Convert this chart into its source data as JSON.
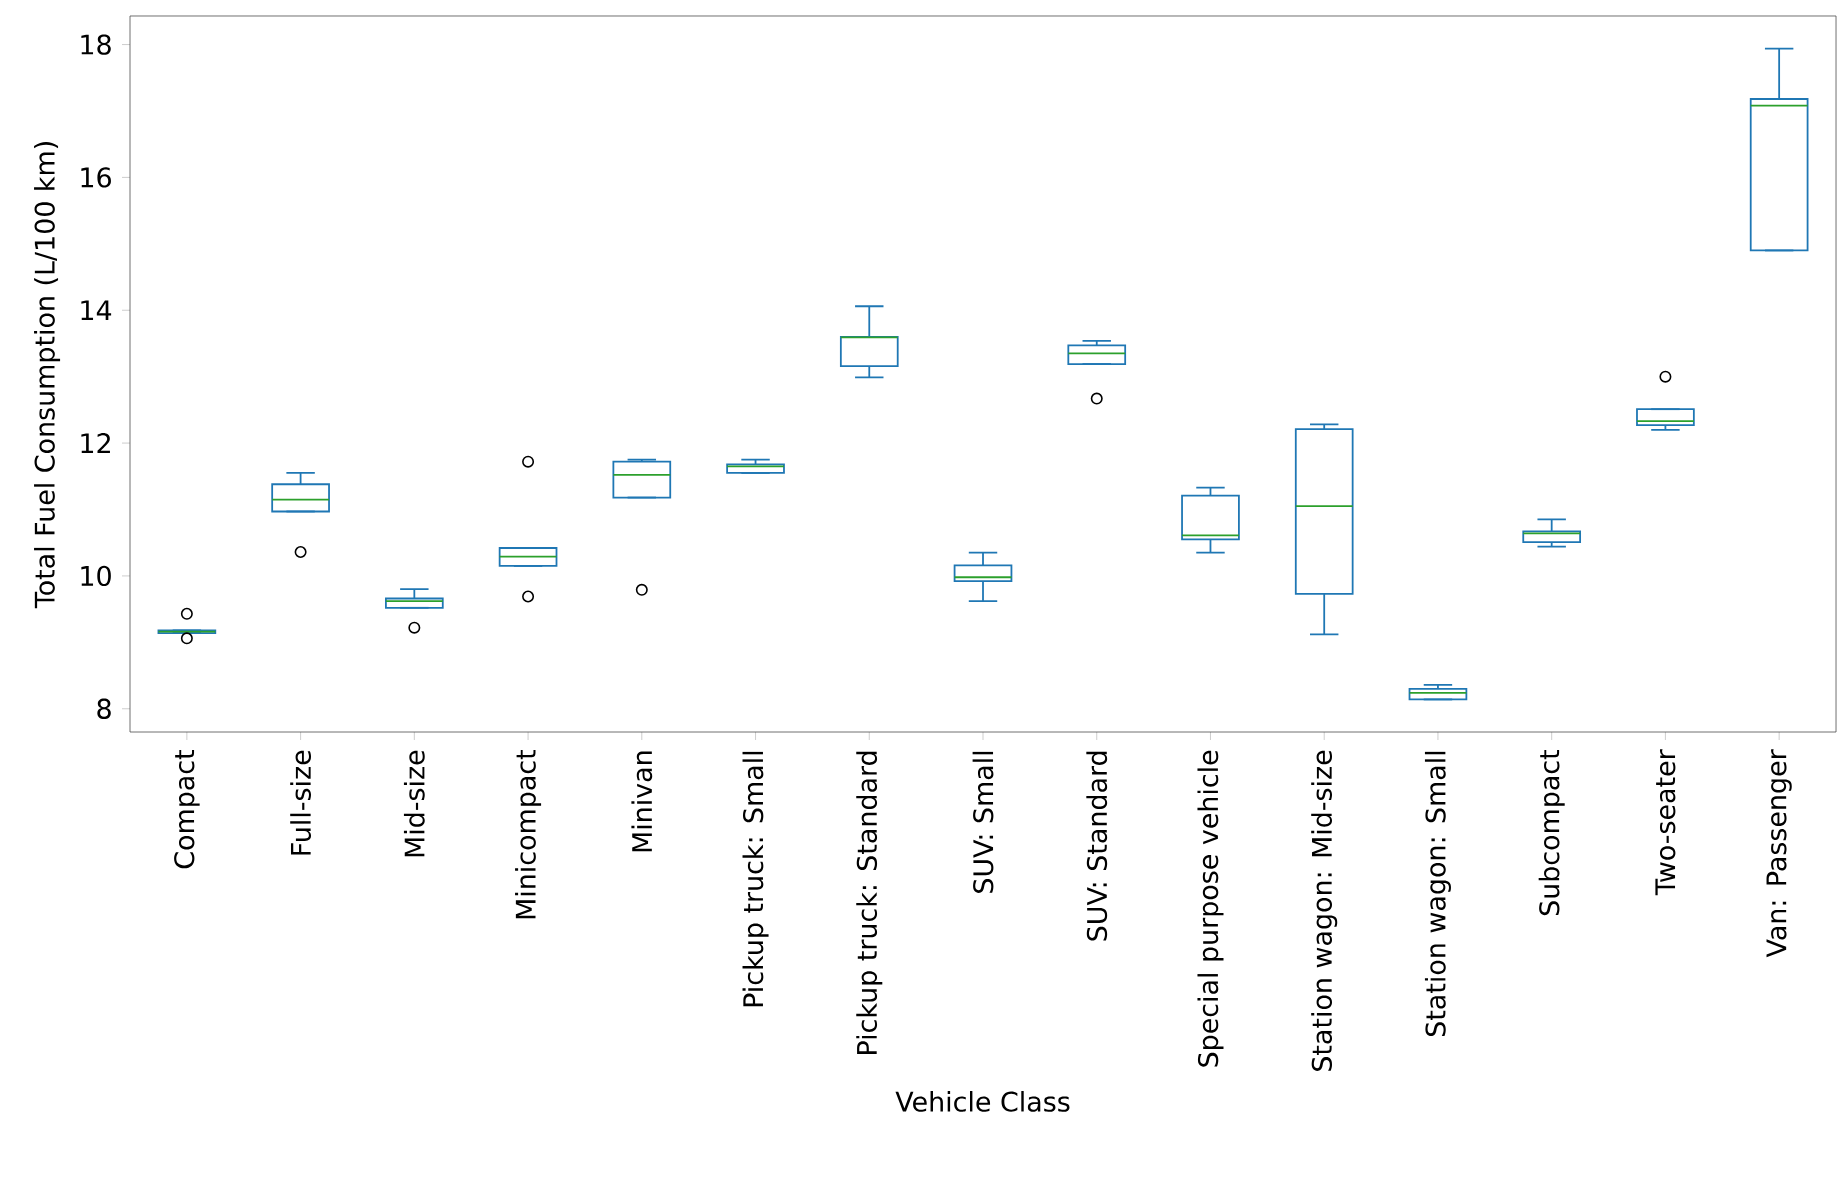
{
  "chart_data": {
    "type": "box",
    "xlabel": "Vehicle Class",
    "ylabel": "Total Fuel Consumption (L/100 km)",
    "color": "#1f77b4",
    "categories": [
      "Compact",
      "Full-size",
      "Mid-size",
      "Minicompact",
      "Minivan",
      "Pickup truck: Small",
      "Pickup truck: Standard",
      "SUV: Small",
      "SUV: Standard",
      "Special purpose vehicle",
      "Station wagon: Mid-size",
      "Station wagon: Small",
      "Subcompact",
      "Two-seater",
      "Van: Passenger"
    ],
    "boxes": [
      {
        "low": 9.14,
        "q1": 9.14,
        "median": 9.16,
        "q3": 9.18,
        "high": 9.18,
        "outliers": [
          9.43,
          9.06
        ]
      },
      {
        "low": 10.97,
        "q1": 10.97,
        "median": 11.15,
        "q3": 11.38,
        "high": 11.55,
        "outliers": [
          10.36
        ]
      },
      {
        "low": 9.52,
        "q1": 9.52,
        "median": 9.62,
        "q3": 9.66,
        "high": 9.8,
        "outliers": [
          9.22
        ]
      },
      {
        "low": 10.15,
        "q1": 10.15,
        "median": 10.29,
        "q3": 10.42,
        "high": 10.42,
        "outliers": [
          11.72,
          9.69
        ]
      },
      {
        "low": 11.18,
        "q1": 11.18,
        "median": 11.52,
        "q3": 11.72,
        "high": 11.75,
        "outliers": [
          9.79
        ]
      },
      {
        "low": 11.55,
        "q1": 11.55,
        "median": 11.65,
        "q3": 11.68,
        "high": 11.75
      },
      {
        "low": 12.99,
        "q1": 13.16,
        "median": 13.59,
        "q3": 13.6,
        "high": 14.06
      },
      {
        "low": 9.62,
        "q1": 9.92,
        "median": 9.98,
        "q3": 10.16,
        "high": 10.35
      },
      {
        "low": 13.19,
        "q1": 13.19,
        "median": 13.35,
        "q3": 13.47,
        "high": 13.54,
        "outliers": [
          12.67
        ]
      },
      {
        "low": 10.35,
        "q1": 10.55,
        "median": 10.61,
        "q3": 11.21,
        "high": 11.33
      },
      {
        "low": 9.12,
        "q1": 9.73,
        "median": 11.05,
        "q3": 12.21,
        "high": 12.28
      },
      {
        "low": 8.14,
        "q1": 8.14,
        "median": 8.24,
        "q3": 8.3,
        "high": 8.36
      },
      {
        "low": 10.44,
        "q1": 10.51,
        "median": 10.64,
        "q3": 10.67,
        "high": 10.85
      },
      {
        "low": 12.2,
        "q1": 12.27,
        "median": 12.33,
        "q3": 12.51,
        "high": 12.51,
        "outliers": [
          13.0
        ]
      },
      {
        "low": 14.9,
        "q1": 14.9,
        "median": 17.08,
        "q3": 17.18,
        "high": 17.94
      }
    ],
    "ylim": [
      7.65,
      18.43
    ],
    "yticks": [
      8,
      10,
      12,
      14,
      16,
      18
    ]
  }
}
